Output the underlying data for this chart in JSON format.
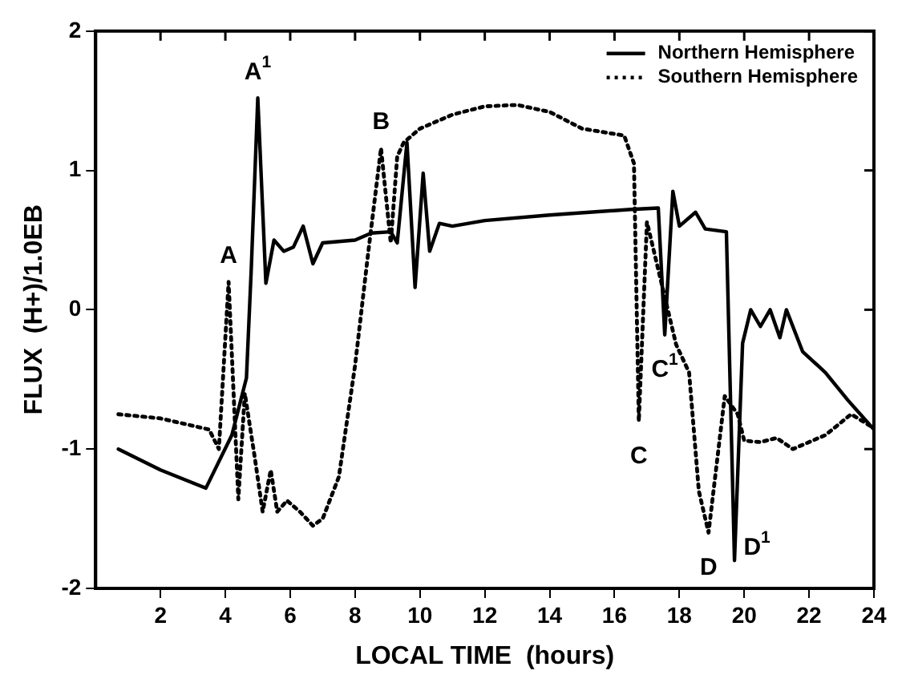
{
  "chart_data": {
    "type": "line",
    "xlabel": "LOCAL TIME  (hours)",
    "ylabel": "FLUX  (H+)/1.0EB",
    "xlim": [
      0,
      24
    ],
    "xticks": [
      2,
      4,
      6,
      8,
      10,
      12,
      14,
      16,
      18,
      20,
      22,
      24
    ],
    "ylim": [
      -2,
      2
    ],
    "yticks": [
      -2,
      -1,
      0,
      1,
      2
    ],
    "grid": false,
    "legend": "top right",
    "marker": "none",
    "series": [
      {
        "name": "Northern Hemisphere",
        "color": "#000000",
        "line_style": "solid",
        "x": [
          0.7,
          2,
          3.4,
          4.2,
          4.65,
          4.8,
          5.0,
          5.25,
          5.5,
          5.8,
          6.1,
          6.4,
          6.7,
          7.0,
          8.0,
          8.5,
          9.1,
          9.3,
          9.6,
          9.85,
          10.1,
          10.3,
          10.6,
          11,
          12,
          14,
          16.5,
          17.35,
          17.55,
          17.8,
          18.0,
          18.5,
          18.8,
          19.45,
          19.7,
          19.95,
          20.2,
          20.5,
          20.8,
          21.1,
          21.3,
          21.8,
          22.5,
          23.2,
          24
        ],
        "values": [
          -1.0,
          -1.15,
          -1.28,
          -0.9,
          -0.49,
          0.3,
          1.52,
          0.19,
          0.5,
          0.42,
          0.45,
          0.6,
          0.33,
          0.48,
          0.5,
          0.55,
          0.56,
          0.48,
          1.2,
          0.16,
          0.98,
          0.42,
          0.62,
          0.6,
          0.64,
          0.68,
          0.72,
          0.73,
          -0.18,
          0.85,
          0.6,
          0.7,
          0.58,
          0.56,
          -1.8,
          -0.24,
          0.0,
          -0.12,
          0.0,
          -0.2,
          0.0,
          -0.3,
          -0.45,
          -0.65,
          -0.86
        ]
      },
      {
        "name": "Southern Hemisphere",
        "color": "#000000",
        "line_style": "dotted",
        "x": [
          0.7,
          2,
          3.5,
          3.8,
          4.1,
          4.4,
          4.6,
          4.9,
          5.15,
          5.4,
          5.6,
          5.9,
          6.3,
          6.7,
          7.0,
          7.5,
          8.0,
          8.4,
          8.8,
          9.1,
          9.3,
          9.5,
          10,
          11,
          12,
          13,
          14,
          15,
          16.3,
          16.6,
          16.75,
          17.0,
          17.9,
          18.3,
          18.6,
          18.9,
          19.4,
          19.8,
          20.0,
          20.5,
          21.0,
          21.5,
          22.5,
          23.3,
          24
        ],
        "values": [
          -0.75,
          -0.78,
          -0.86,
          -1.0,
          0.2,
          -1.36,
          -0.6,
          -1.05,
          -1.45,
          -1.15,
          -1.45,
          -1.37,
          -1.45,
          -1.55,
          -1.5,
          -1.2,
          -0.4,
          0.4,
          1.16,
          0.48,
          1.1,
          1.2,
          1.3,
          1.4,
          1.46,
          1.47,
          1.42,
          1.3,
          1.25,
          1.05,
          -0.8,
          0.63,
          -0.25,
          -0.45,
          -1.3,
          -1.6,
          -0.62,
          -0.75,
          -0.94,
          -0.95,
          -0.92,
          -1.0,
          -0.9,
          -0.75,
          -0.85
        ]
      }
    ],
    "annotations": [
      {
        "text": "A",
        "x": 4.1,
        "y": 0.2
      },
      {
        "text": "A$^{1}$",
        "x": 5.0,
        "y": 1.52
      },
      {
        "text": "B",
        "x": 8.8,
        "y": 1.16
      },
      {
        "text": "C",
        "x": 16.75,
        "y": -0.8
      },
      {
        "text": "C$^{1}$",
        "x": 17.55,
        "y": -0.18
      },
      {
        "text": "D",
        "x": 18.9,
        "y": -1.6
      },
      {
        "text": "D$^{1}$",
        "x": 19.7,
        "y": -1.8
      }
    ]
  }
}
